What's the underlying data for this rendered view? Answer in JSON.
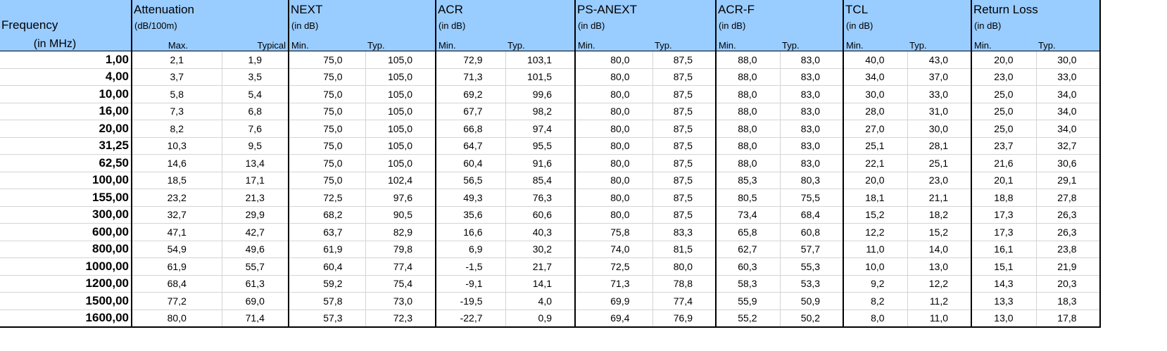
{
  "header": {
    "frequency": {
      "title": "Frequency",
      "unit": "(in MHz)"
    },
    "groups": [
      {
        "title": "Attenuation",
        "unit": "(dB/100m)",
        "sub": [
          "Max.",
          "Typical"
        ]
      },
      {
        "title": "NEXT",
        "unit": "(in dB)",
        "sub": [
          "Min.",
          "Typ."
        ]
      },
      {
        "title": "ACR",
        "unit": "(in dB)",
        "sub": [
          "Min.",
          "Typ."
        ]
      },
      {
        "title": "PS-ANEXT",
        "unit": "(in dB)",
        "sub": [
          "Min.",
          "Typ."
        ]
      },
      {
        "title": "ACR-F",
        "unit": "(in dB)",
        "sub": [
          "Min.",
          "Typ."
        ]
      },
      {
        "title": "TCL",
        "unit": "(in dB)",
        "sub": [
          "Min.",
          "Typ."
        ]
      },
      {
        "title": "Return Loss",
        "unit": " (in dB)",
        "sub": [
          "Min.",
          "Typ."
        ]
      }
    ]
  },
  "colors": {
    "header_bg": "#99CCFF",
    "grid": "#d4d4d4",
    "group_border": "#000000"
  },
  "rows": [
    [
      "1,00",
      "2,1",
      "1,9",
      "75,0",
      "105,0",
      "72,9",
      "103,1",
      "80,0",
      "87,5",
      "88,0",
      "83,0",
      "40,0",
      "43,0",
      "20,0",
      "30,0"
    ],
    [
      "4,00",
      "3,7",
      "3,5",
      "75,0",
      "105,0",
      "71,3",
      "101,5",
      "80,0",
      "87,5",
      "88,0",
      "83,0",
      "34,0",
      "37,0",
      "23,0",
      "33,0"
    ],
    [
      "10,00",
      "5,8",
      "5,4",
      "75,0",
      "105,0",
      "69,2",
      "99,6",
      "80,0",
      "87,5",
      "88,0",
      "83,0",
      "30,0",
      "33,0",
      "25,0",
      "34,0"
    ],
    [
      "16,00",
      "7,3",
      "6,8",
      "75,0",
      "105,0",
      "67,7",
      "98,2",
      "80,0",
      "87,5",
      "88,0",
      "83,0",
      "28,0",
      "31,0",
      "25,0",
      "34,0"
    ],
    [
      "20,00",
      "8,2",
      "7,6",
      "75,0",
      "105,0",
      "66,8",
      "97,4",
      "80,0",
      "87,5",
      "88,0",
      "83,0",
      "27,0",
      "30,0",
      "25,0",
      "34,0"
    ],
    [
      "31,25",
      "10,3",
      "9,5",
      "75,0",
      "105,0",
      "64,7",
      "95,5",
      "80,0",
      "87,5",
      "88,0",
      "83,0",
      "25,1",
      "28,1",
      "23,7",
      "32,7"
    ],
    [
      "62,50",
      "14,6",
      "13,4",
      "75,0",
      "105,0",
      "60,4",
      "91,6",
      "80,0",
      "87,5",
      "88,0",
      "83,0",
      "22,1",
      "25,1",
      "21,6",
      "30,6"
    ],
    [
      "100,00",
      "18,5",
      "17,1",
      "75,0",
      "102,4",
      "56,5",
      "85,4",
      "80,0",
      "87,5",
      "85,3",
      "80,3",
      "20,0",
      "23,0",
      "20,1",
      "29,1"
    ],
    [
      "155,00",
      "23,2",
      "21,3",
      "72,5",
      "97,6",
      "49,3",
      "76,3",
      "80,0",
      "87,5",
      "80,5",
      "75,5",
      "18,1",
      "21,1",
      "18,8",
      "27,8"
    ],
    [
      "300,00",
      "32,7",
      "29,9",
      "68,2",
      "90,5",
      "35,6",
      "60,6",
      "80,0",
      "87,5",
      "73,4",
      "68,4",
      "15,2",
      "18,2",
      "17,3",
      "26,3"
    ],
    [
      "600,00",
      "47,1",
      "42,7",
      "63,7",
      "82,9",
      "16,6",
      "40,3",
      "75,8",
      "83,3",
      "65,8",
      "60,8",
      "12,2",
      "15,2",
      "17,3",
      "26,3"
    ],
    [
      "800,00",
      "54,9",
      "49,6",
      "61,9",
      "79,8",
      "6,9",
      "30,2",
      "74,0",
      "81,5",
      "62,7",
      "57,7",
      "11,0",
      "14,0",
      "16,1",
      "23,8"
    ],
    [
      "1000,00",
      "61,9",
      "55,7",
      "60,4",
      "77,4",
      "-1,5",
      "21,7",
      "72,5",
      "80,0",
      "60,3",
      "55,3",
      "10,0",
      "13,0",
      "15,1",
      "21,9"
    ],
    [
      "1200,00",
      "68,4",
      "61,3",
      "59,2",
      "75,4",
      "-9,1",
      "14,1",
      "71,3",
      "78,8",
      "58,3",
      "53,3",
      "9,2",
      "12,2",
      "14,3",
      "20,3"
    ],
    [
      "1500,00",
      "77,2",
      "69,0",
      "57,8",
      "73,0",
      "-19,5",
      "4,0",
      "69,9",
      "77,4",
      "55,9",
      "50,9",
      "8,2",
      "11,2",
      "13,3",
      "18,3"
    ],
    [
      "1600,00",
      "80,0",
      "71,4",
      "57,3",
      "72,3",
      "-22,7",
      "0,9",
      "69,4",
      "76,9",
      "55,2",
      "50,2",
      "8,0",
      "11,0",
      "13,0",
      "17,8"
    ]
  ]
}
